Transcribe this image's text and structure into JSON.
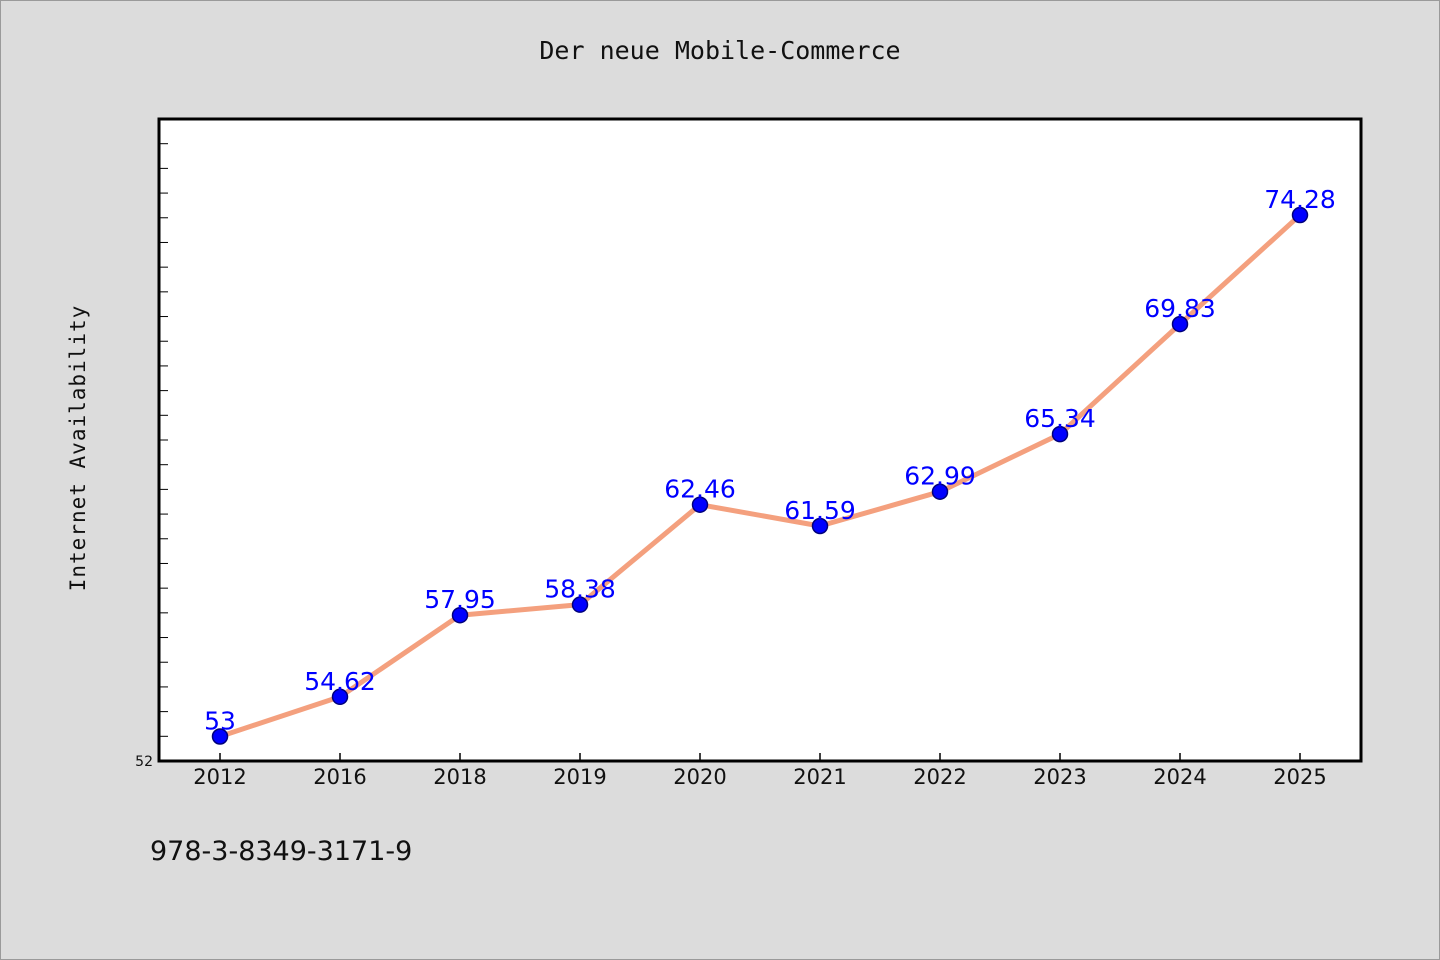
{
  "chart_data": {
    "type": "line",
    "title": "Der neue Mobile-Commerce",
    "xlabel": "",
    "ylabel": "Internet Availability",
    "categories": [
      "2012",
      "2016",
      "2018",
      "2019",
      "2020",
      "2021",
      "2022",
      "2023",
      "2024",
      "2025"
    ],
    "series": [
      {
        "values": [
          53,
          54.62,
          57.95,
          58.38,
          62.46,
          61.59,
          62.99,
          65.34,
          69.83,
          74.28
        ]
      }
    ],
    "y_tick_label": "52",
    "ylim": [
      52,
      78.2
    ],
    "grid": false,
    "legend": "none",
    "colors": {
      "line": "#f4a07e",
      "marker": "#0000ff",
      "data_label": "#0000ff",
      "plot_bg": "#ffffff",
      "page_bg": "#dcdcdc"
    }
  },
  "footer": {
    "isbn": "978-3-8349-3171-9"
  }
}
